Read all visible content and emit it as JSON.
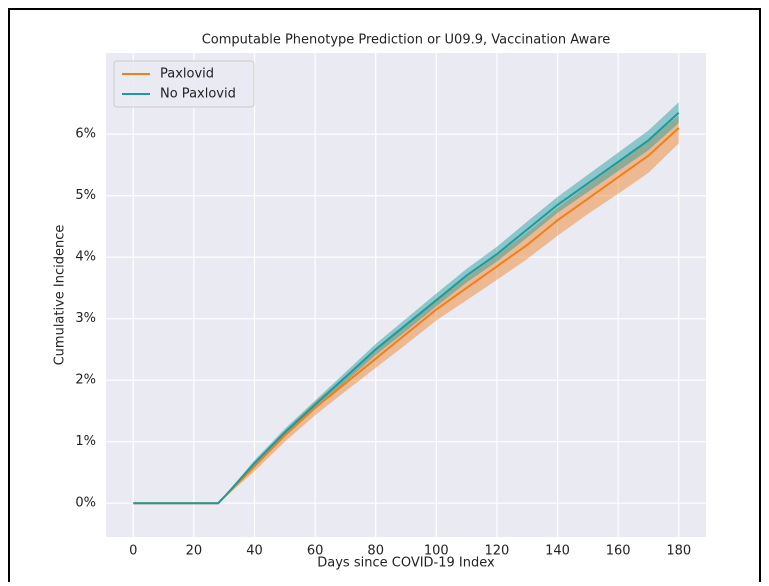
{
  "chart_data": {
    "type": "line",
    "title": "Computable Phenotype Prediction or U09.9, Vaccination Aware",
    "x_label": "Days since COVID-19 Index",
    "y_label": "Cumulative Incidence",
    "x": [
      0,
      10,
      20,
      28,
      30,
      40,
      50,
      60,
      70,
      80,
      90,
      100,
      110,
      120,
      130,
      140,
      150,
      160,
      170,
      180
    ],
    "series": [
      {
        "name": "Paxlovid",
        "color": "#f07f1e",
        "values": [
          0,
          0,
          0,
          0,
          0.1,
          0.6,
          1.1,
          1.55,
          1.95,
          2.35,
          2.75,
          3.15,
          3.5,
          3.85,
          4.2,
          4.6,
          4.95,
          5.3,
          5.65,
          6.1
        ],
        "lower": [
          0,
          0,
          0,
          0,
          0.08,
          0.52,
          1.0,
          1.43,
          1.82,
          2.2,
          2.58,
          2.97,
          3.3,
          3.63,
          3.97,
          4.35,
          4.7,
          5.03,
          5.37,
          5.85
        ],
        "upper": [
          0,
          0,
          0,
          0,
          0.12,
          0.67,
          1.18,
          1.65,
          2.07,
          2.48,
          2.9,
          3.3,
          3.67,
          4.03,
          4.4,
          4.8,
          5.17,
          5.53,
          5.9,
          6.3
        ]
      },
      {
        "name": "No Paxlovid",
        "color": "#1b9c9c",
        "values": [
          0,
          0,
          0,
          0,
          0.1,
          0.65,
          1.15,
          1.6,
          2.05,
          2.5,
          2.9,
          3.3,
          3.7,
          4.05,
          4.45,
          4.85,
          5.2,
          5.55,
          5.9,
          6.35
        ],
        "lower": [
          0,
          0,
          0,
          0,
          0.09,
          0.6,
          1.09,
          1.53,
          1.97,
          2.41,
          2.8,
          3.2,
          3.59,
          3.93,
          4.32,
          4.72,
          5.06,
          5.4,
          5.74,
          6.18
        ],
        "upper": [
          0,
          0,
          0,
          0,
          0.11,
          0.7,
          1.21,
          1.67,
          2.13,
          2.59,
          3.0,
          3.41,
          3.81,
          4.17,
          4.58,
          4.98,
          5.34,
          5.7,
          6.06,
          6.52
        ]
      }
    ],
    "xlim": [
      -9,
      189
    ],
    "ylim": [
      -0.55,
      7.32
    ],
    "xticks": [
      0,
      20,
      40,
      60,
      80,
      100,
      120,
      140,
      160,
      180
    ],
    "yticks": [
      {
        "value": 0,
        "label": "0%"
      },
      {
        "value": 1,
        "label": "1%"
      },
      {
        "value": 2,
        "label": "2%"
      },
      {
        "value": 3,
        "label": "3%"
      },
      {
        "value": 4,
        "label": "4%"
      },
      {
        "value": 5,
        "label": "5%"
      },
      {
        "value": 6,
        "label": "6%"
      }
    ],
    "grid": true,
    "legend": "upper-left"
  }
}
